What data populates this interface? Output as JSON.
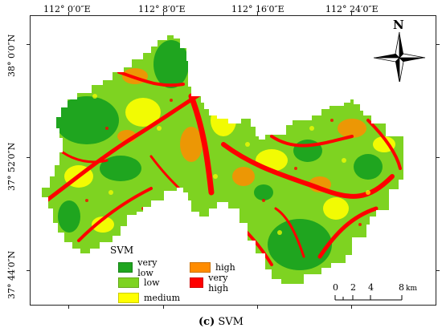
{
  "map": {
    "longitude_labels": [
      "112° 0′0″E",
      "112° 8′0″E",
      "112° 16′0″E",
      "112° 24′0″E"
    ],
    "latitude_labels": [
      "38° 0′0″N",
      "37° 52′0″N",
      "37° 44′0″N"
    ],
    "north_label": "N",
    "layer_name": "SVM",
    "legend": {
      "title": "SVM",
      "classes": [
        {
          "label": "very low",
          "color": "#1fa51f"
        },
        {
          "label": "low",
          "color": "#7ed321"
        },
        {
          "label": "medium",
          "color": "#ffff00"
        },
        {
          "label": "high",
          "color": "#ff8c00"
        },
        {
          "label": "very high",
          "color": "#ff0000"
        }
      ]
    },
    "scale_bar": {
      "ticks": [
        "0",
        "2",
        "4",
        "8"
      ],
      "unit": "km"
    },
    "caption_tag": "(c)",
    "caption_text": "SVM"
  }
}
